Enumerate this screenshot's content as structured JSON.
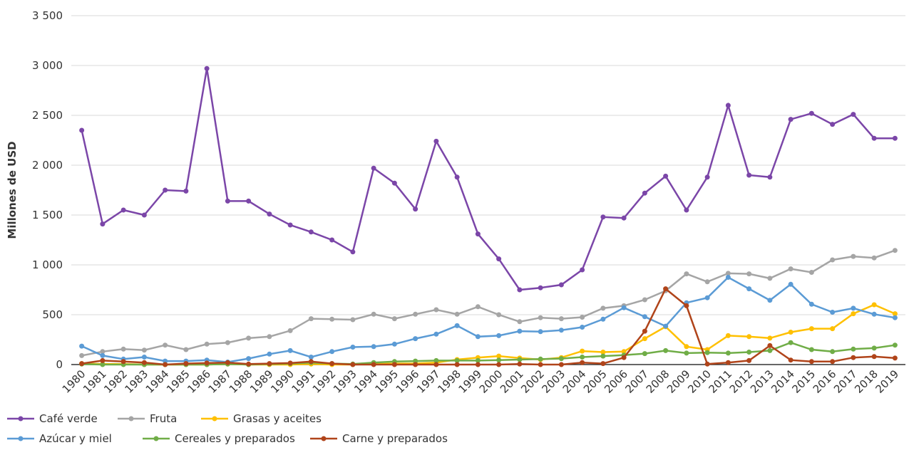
{
  "chart_data": {
    "type": "line",
    "y_label": "Millones de USD",
    "x": [
      1980,
      1981,
      1982,
      1983,
      1984,
      1985,
      1986,
      1987,
      1988,
      1989,
      1990,
      1991,
      1992,
      1993,
      1994,
      1995,
      1996,
      1997,
      1998,
      1999,
      2000,
      2001,
      2002,
      2003,
      2004,
      2005,
      2006,
      2007,
      2008,
      2009,
      2010,
      2011,
      2012,
      2013,
      2014,
      2015,
      2016,
      2017,
      2018,
      2019
    ],
    "ylim": [
      0,
      3500
    ],
    "yticks": [
      0,
      {
        "value": 500,
        "label": "500"
      },
      {
        "value": 1000,
        "label": "1 000"
      },
      {
        "value": 1500,
        "label": "1 500"
      },
      {
        "value": 2000,
        "label": "2 000"
      },
      {
        "value": 2500,
        "label": "2 500"
      },
      {
        "value": 3000,
        "label": "3 000"
      },
      {
        "value": 3500,
        "label": "3 500"
      }
    ],
    "grid": true,
    "series": [
      {
        "name": "Café verde",
        "color": "#7b46a8",
        "values": [
          2350,
          1410,
          1550,
          1500,
          1750,
          1740,
          2970,
          1640,
          1640,
          1510,
          1400,
          1330,
          1250,
          1130,
          1970,
          1820,
          1560,
          2240,
          1880,
          1310,
          1060,
          750,
          770,
          800,
          950,
          1480,
          1470,
          1720,
          1890,
          1550,
          1880,
          2600,
          1900,
          1880,
          2460,
          2520,
          2410,
          2510,
          2270,
          2270
        ]
      },
      {
        "name": "Fruta",
        "color": "#a5a5a5",
        "values": [
          90,
          130,
          155,
          145,
          195,
          150,
          205,
          220,
          265,
          280,
          340,
          460,
          455,
          450,
          505,
          460,
          505,
          550,
          505,
          580,
          500,
          430,
          470,
          460,
          475,
          565,
          590,
          650,
          740,
          910,
          830,
          915,
          910,
          865,
          960,
          925,
          1050,
          1085,
          1070,
          1145
        ]
      },
      {
        "name": "Grasas y aceites",
        "color": "#ffc000",
        "values": [
          10,
          5,
          5,
          0,
          0,
          0,
          0,
          5,
          0,
          0,
          0,
          5,
          0,
          0,
          5,
          10,
          10,
          20,
          50,
          70,
          85,
          65,
          50,
          70,
          135,
          125,
          130,
          260,
          380,
          180,
          150,
          290,
          280,
          265,
          325,
          360,
          360,
          510,
          600,
          510
        ]
      },
      {
        "name": "Azúcar y miel",
        "color": "#5b9bd5",
        "values": [
          185,
          90,
          55,
          75,
          35,
          35,
          45,
          25,
          60,
          105,
          140,
          75,
          130,
          175,
          180,
          205,
          260,
          305,
          390,
          280,
          290,
          335,
          330,
          345,
          375,
          455,
          570,
          480,
          385,
          620,
          670,
          875,
          760,
          645,
          805,
          605,
          525,
          565,
          505,
          470
        ]
      },
      {
        "name": "Cereales y preparados",
        "color": "#70ad47",
        "values": [
          5,
          0,
          0,
          0,
          0,
          0,
          0,
          5,
          0,
          5,
          10,
          20,
          10,
          5,
          20,
          30,
          35,
          40,
          40,
          40,
          45,
          50,
          55,
          60,
          75,
          85,
          95,
          110,
          140,
          115,
          120,
          115,
          125,
          140,
          220,
          150,
          130,
          155,
          165,
          195
        ]
      },
      {
        "name": "Carne y preparados",
        "color": "#b0441a",
        "values": [
          10,
          40,
          30,
          20,
          0,
          10,
          15,
          20,
          5,
          10,
          15,
          30,
          10,
          0,
          0,
          0,
          0,
          0,
          0,
          0,
          0,
          5,
          0,
          0,
          20,
          10,
          70,
          335,
          760,
          590,
          5,
          20,
          40,
          190,
          45,
          30,
          30,
          70,
          80,
          65
        ]
      }
    ]
  }
}
